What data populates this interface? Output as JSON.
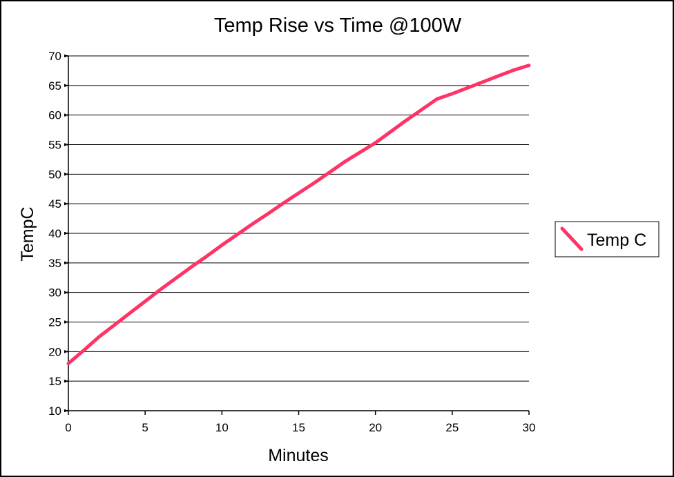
{
  "chart_data": {
    "type": "line",
    "title": "Temp Rise vs Time @100W",
    "xlabel": "Minutes",
    "ylabel": "TempC",
    "xlim": [
      0,
      30
    ],
    "ylim": [
      10,
      70
    ],
    "xticks": [
      0,
      5,
      10,
      15,
      20,
      25,
      30
    ],
    "yticks": [
      10,
      15,
      20,
      25,
      30,
      35,
      40,
      45,
      50,
      55,
      60,
      65,
      70
    ],
    "xtick_labels": [
      "0",
      "5",
      "10",
      "15",
      "20",
      "25",
      "30"
    ],
    "ytick_labels": [
      "10",
      "15",
      "20",
      "25",
      "30",
      "35",
      "40",
      "45",
      "50",
      "55",
      "60",
      "65",
      "70"
    ],
    "grid": "horizontal",
    "legend_position": "right",
    "series": [
      {
        "name": "Temp C",
        "color": "#ff3366",
        "x": [
          0,
          1,
          2,
          3,
          4,
          5,
          6,
          7,
          8,
          9,
          10,
          11,
          12,
          13,
          14,
          15,
          16,
          17,
          18,
          19,
          20,
          21,
          22,
          23,
          24,
          25,
          26,
          27,
          28,
          29,
          30
        ],
        "y": [
          18,
          20.2,
          22.5,
          24.5,
          26.5,
          28.5,
          30.5,
          32.4,
          34.3,
          36.1,
          38,
          39.8,
          41.6,
          43.3,
          45.1,
          46.8,
          48.5,
          50.3,
          52.1,
          53.7,
          55.3,
          57.2,
          59.1,
          60.9,
          62.7,
          63.6,
          64.6,
          65.6,
          66.6,
          67.6,
          68.4
        ]
      }
    ]
  }
}
